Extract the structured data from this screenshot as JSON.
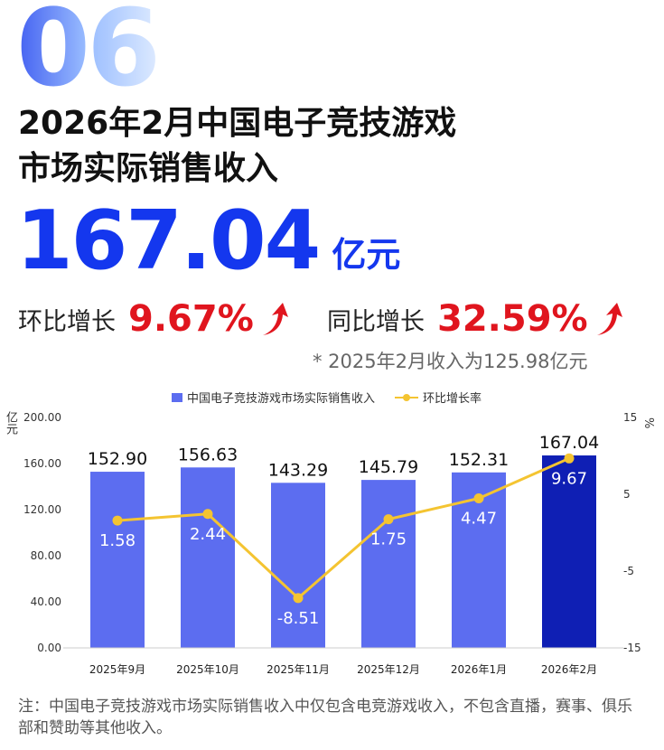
{
  "header": {
    "section_number": "06",
    "title_line1": "2026年2月中国电子竞技游戏",
    "title_line2": "市场实际销售收入",
    "amount": "167.04",
    "amount_unit": "亿元",
    "mom_label": "环比增长",
    "mom_value": "9.67%",
    "yoy_label": "同比增长",
    "yoy_value": "32.59%",
    "yoy_note": "* 2025年2月收入为125.98亿元"
  },
  "colors": {
    "bar": "#5c6df0",
    "bar_highlight": "#0f1fb4",
    "line": "#f4c431",
    "accent_blue": "#1437ee",
    "accent_red": "#e0151e"
  },
  "chart_data": {
    "type": "bar",
    "categories": [
      "2025年9月",
      "2025年10月",
      "2025年11月",
      "2025年12月",
      "2026年1月",
      "2026年2月"
    ],
    "series": [
      {
        "name": "中国电子竞技游戏市场实际销售收入",
        "type": "bar",
        "axis": "left",
        "values": [
          152.9,
          156.63,
          143.29,
          145.79,
          152.31,
          167.04
        ],
        "labels": [
          "152.90",
          "156.63",
          "143.29",
          "145.79",
          "152.31",
          "167.04"
        ]
      },
      {
        "name": "环比增长率",
        "type": "line",
        "axis": "right",
        "values": [
          1.58,
          2.44,
          -8.51,
          1.75,
          4.47,
          9.67
        ],
        "labels": [
          "1.58",
          "2.44",
          "-8.51",
          "1.75",
          "4.47",
          "9.67"
        ]
      }
    ],
    "y_left": {
      "label": "亿元",
      "min": 0,
      "max": 200,
      "ticks": [
        "0.00",
        "40.00",
        "80.00",
        "120.00",
        "160.00",
        "200.00"
      ],
      "tick_values": [
        0,
        40,
        80,
        120,
        160,
        200
      ]
    },
    "y_right": {
      "label": "%",
      "min": -15,
      "max": 15,
      "ticks": [
        "-15",
        "-5",
        "5",
        "15"
      ],
      "tick_values": [
        -15,
        -5,
        5,
        15
      ]
    },
    "legend_position": "top-center",
    "grid": false,
    "highlight_index": 5
  },
  "footer": {
    "note": "注：中国电子竞技游戏市场实际销售收入中仅包含电竞游戏收入，不包含直播，赛事、俱乐部和赞助等其他收入。"
  }
}
